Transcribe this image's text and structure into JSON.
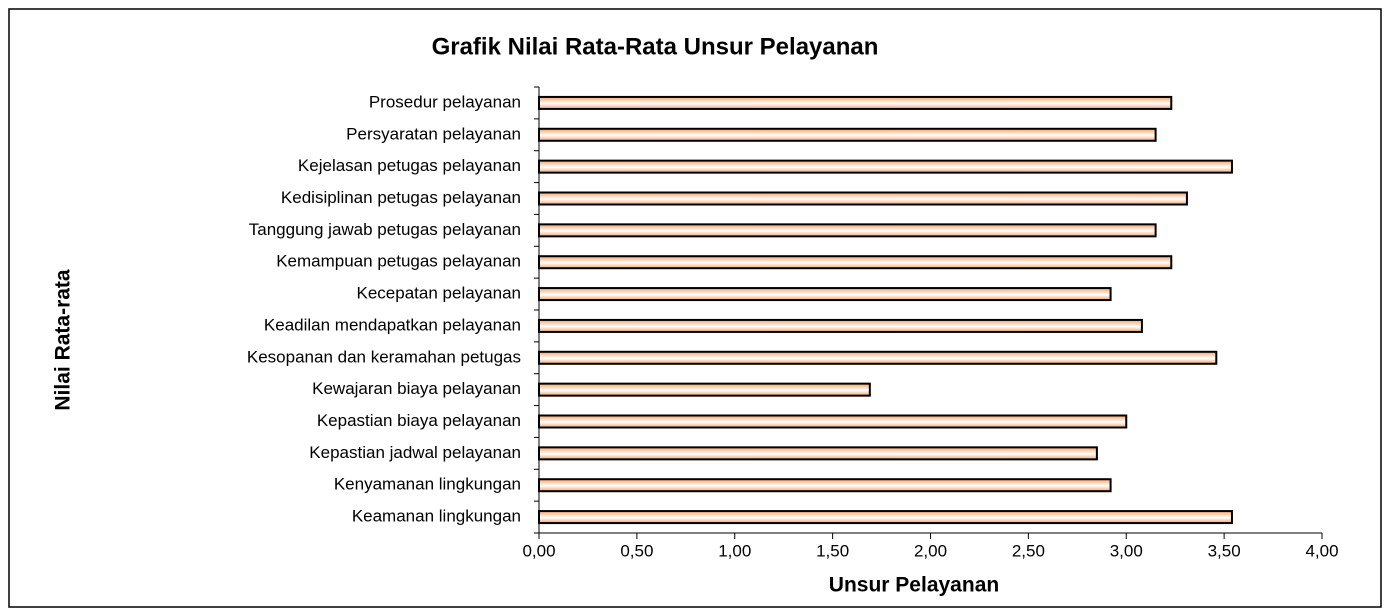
{
  "chart_data": {
    "type": "bar",
    "orientation": "horizontal",
    "title": "Grafik Nilai Rata-Rata Unsur Pelayanan",
    "x_label": "Unsur Pelayanan",
    "y_label": "Nilai Rata-rata",
    "categories": [
      "Prosedur pelayanan",
      "Persyaratan pelayanan",
      "Kejelasan petugas pelayanan",
      "Kedisiplinan petugas pelayanan",
      "Tanggung jawab petugas pelayanan",
      "Kemampuan petugas pelayanan",
      "Kecepatan pelayanan",
      "Keadilan mendapatkan pelayanan",
      "Kesopanan dan keramahan petugas",
      "Kewajaran biaya pelayanan",
      "Kepastian biaya pelayanan",
      "Kepastian jadwal pelayanan",
      "Kenyamanan lingkungan",
      "Keamanan lingkungan"
    ],
    "values": [
      3.23,
      3.15,
      3.54,
      3.31,
      3.15,
      3.23,
      2.92,
      3.08,
      3.46,
      1.69,
      3.0,
      2.85,
      2.92,
      3.54
    ],
    "color": "#f4a46a",
    "xlim": [
      0,
      4
    ],
    "xticks": [
      {
        "value": 0,
        "label": "0,00"
      },
      {
        "value": 0.5,
        "label": "0,50"
      },
      {
        "value": 1,
        "label": "1,00"
      },
      {
        "value": 1.5,
        "label": "1,50"
      },
      {
        "value": 2,
        "label": "2,00"
      },
      {
        "value": 2.5,
        "label": "2,50"
      },
      {
        "value": 3,
        "label": "3,00"
      },
      {
        "value": 3.5,
        "label": "3,50"
      },
      {
        "value": 4,
        "label": "4,00"
      }
    ],
    "grid": false
  }
}
